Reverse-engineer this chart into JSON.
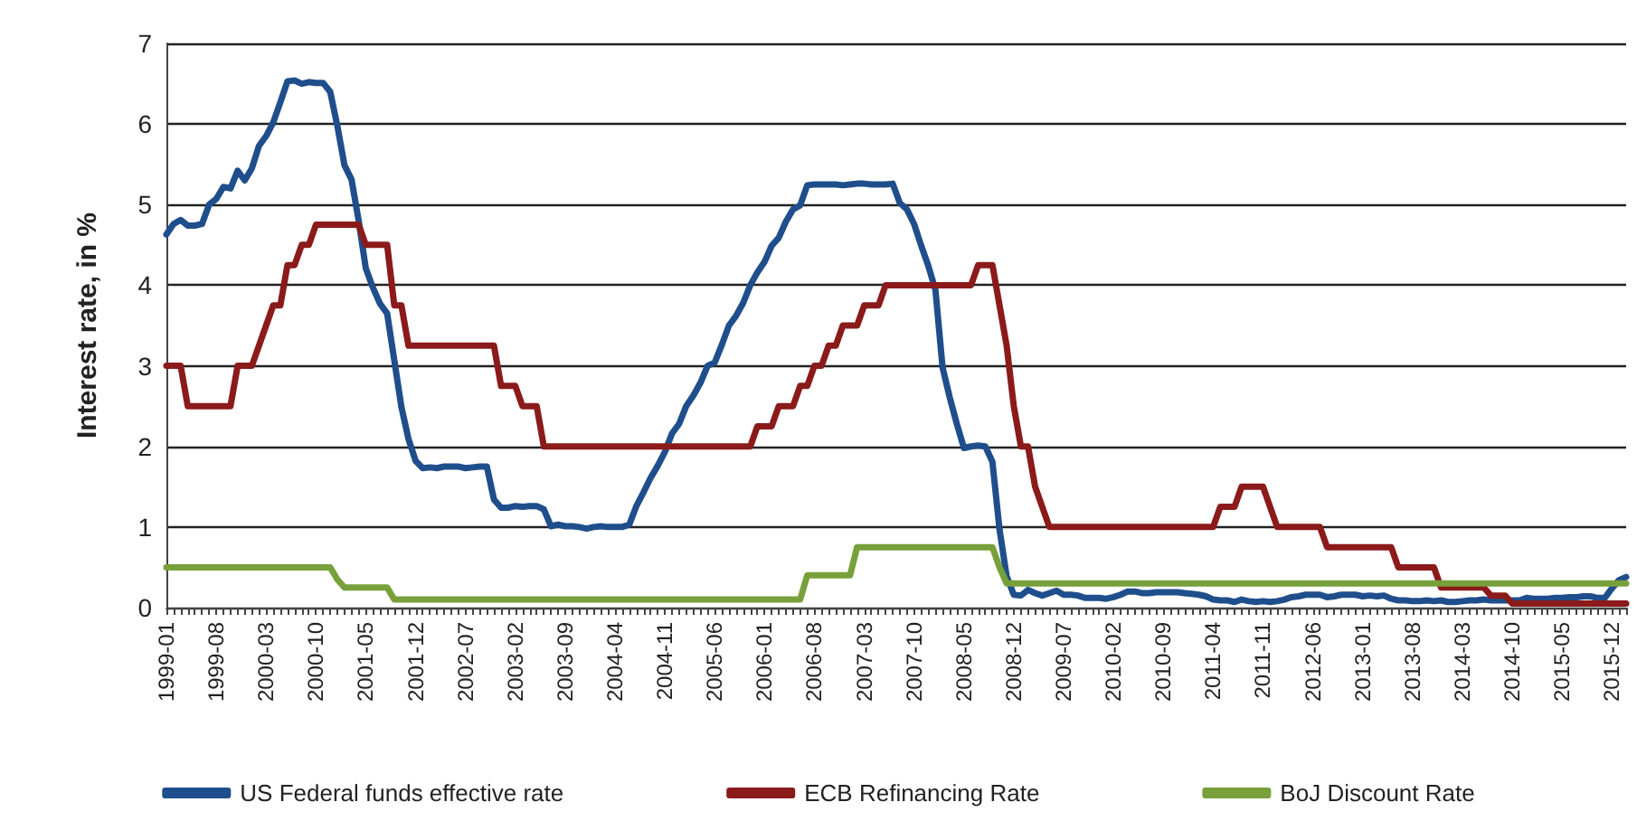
{
  "chart_data": {
    "type": "line",
    "ylabel": "Interest rate, in %",
    "ylim": [
      0,
      7
    ],
    "yticks": [
      0,
      1,
      2,
      3,
      4,
      5,
      6,
      7
    ],
    "grid": "y",
    "legend": "bottom",
    "marker": "none",
    "line_style": "solid",
    "categories": [
      "1999-01",
      null,
      null,
      null,
      null,
      null,
      null,
      "1999-08",
      null,
      null,
      null,
      null,
      null,
      null,
      "2000-03",
      null,
      null,
      null,
      null,
      null,
      null,
      "2000-10",
      null,
      null,
      null,
      null,
      null,
      null,
      "2001-05",
      null,
      null,
      null,
      null,
      null,
      null,
      "2001-12",
      null,
      null,
      null,
      null,
      null,
      null,
      "2002-07",
      null,
      null,
      null,
      null,
      null,
      null,
      "2003-02",
      null,
      null,
      null,
      null,
      null,
      null,
      "2003-09",
      null,
      null,
      null,
      null,
      null,
      null,
      "2004-04",
      null,
      null,
      null,
      null,
      null,
      null,
      "2004-11",
      null,
      null,
      null,
      null,
      null,
      null,
      "2005-06",
      null,
      null,
      null,
      null,
      null,
      null,
      "2006-01",
      null,
      null,
      null,
      null,
      null,
      null,
      "2006-08",
      null,
      null,
      null,
      null,
      null,
      null,
      "2007-03",
      null,
      null,
      null,
      null,
      null,
      null,
      "2007-10",
      null,
      null,
      null,
      null,
      null,
      null,
      "2008-05",
      null,
      null,
      null,
      null,
      null,
      null,
      "2008-12",
      null,
      null,
      null,
      null,
      null,
      null,
      "2009-07",
      null,
      null,
      null,
      null,
      null,
      null,
      "2010-02",
      null,
      null,
      null,
      null,
      null,
      null,
      "2010-09",
      null,
      null,
      null,
      null,
      null,
      null,
      "2011-04",
      null,
      null,
      null,
      null,
      null,
      null,
      "2011-11",
      null,
      null,
      null,
      null,
      null,
      null,
      "2012-06",
      null,
      null,
      null,
      null,
      null,
      null,
      "2013-01",
      null,
      null,
      null,
      null,
      null,
      null,
      "2013-08",
      null,
      null,
      null,
      null,
      null,
      null,
      "2014-03",
      null,
      null,
      null,
      null,
      null,
      null,
      "2014-10",
      null,
      null,
      null,
      null,
      null,
      null,
      "2015-05",
      null,
      null,
      null,
      null,
      null,
      null,
      "2015-12",
      null,
      null
    ],
    "series": [
      {
        "name": "US Federal funds effective rate",
        "color": "#1f4e8c",
        "values": [
          4.63,
          4.76,
          4.81,
          4.74,
          4.74,
          4.76,
          5.0,
          5.07,
          5.22,
          5.2,
          5.42,
          5.3,
          5.45,
          5.73,
          5.85,
          6.02,
          6.27,
          6.53,
          6.54,
          6.5,
          6.52,
          6.51,
          6.51,
          6.4,
          5.98,
          5.49,
          5.31,
          4.8,
          4.21,
          3.97,
          3.77,
          3.65,
          3.07,
          2.49,
          2.09,
          1.82,
          1.73,
          1.74,
          1.73,
          1.75,
          1.75,
          1.75,
          1.73,
          1.74,
          1.75,
          1.75,
          1.34,
          1.24,
          1.24,
          1.26,
          1.25,
          1.26,
          1.26,
          1.22,
          1.01,
          1.03,
          1.01,
          1.01,
          1.0,
          0.98,
          1.0,
          1.01,
          1.0,
          1.0,
          1.0,
          1.03,
          1.26,
          1.43,
          1.61,
          1.76,
          1.93,
          2.16,
          2.28,
          2.5,
          2.63,
          2.79,
          3.0,
          3.04,
          3.26,
          3.5,
          3.62,
          3.78,
          4.0,
          4.16,
          4.29,
          4.49,
          4.59,
          4.79,
          4.94,
          4.99,
          5.24,
          5.25,
          5.25,
          5.25,
          5.25,
          5.24,
          5.25,
          5.26,
          5.26,
          5.25,
          5.25,
          5.25,
          5.26,
          5.02,
          4.94,
          4.76,
          4.49,
          4.24,
          3.94,
          2.98,
          2.61,
          2.28,
          1.98,
          2.0,
          2.01,
          2.0,
          1.81,
          0.97,
          0.39,
          0.16,
          0.15,
          0.22,
          0.18,
          0.15,
          0.18,
          0.21,
          0.16,
          0.16,
          0.15,
          0.12,
          0.12,
          0.12,
          0.11,
          0.13,
          0.16,
          0.2,
          0.2,
          0.18,
          0.18,
          0.19,
          0.19,
          0.19,
          0.19,
          0.18,
          0.17,
          0.16,
          0.14,
          0.1,
          0.09,
          0.09,
          0.07,
          0.1,
          0.08,
          0.07,
          0.08,
          0.07,
          0.08,
          0.1,
          0.13,
          0.14,
          0.16,
          0.16,
          0.16,
          0.13,
          0.14,
          0.16,
          0.16,
          0.16,
          0.14,
          0.15,
          0.14,
          0.15,
          0.11,
          0.09,
          0.09,
          0.08,
          0.08,
          0.09,
          0.08,
          0.09,
          0.07,
          0.07,
          0.08,
          0.09,
          0.09,
          0.1,
          0.09,
          0.09,
          0.09,
          0.09,
          0.09,
          0.12,
          0.11,
          0.11,
          0.11,
          0.12,
          0.12,
          0.13,
          0.13,
          0.14,
          0.14,
          0.12,
          0.12,
          0.24,
          0.34,
          0.38
        ]
      },
      {
        "name": "ECB Refinancing Rate",
        "color": "#8b1a1a",
        "values": [
          3,
          3,
          3,
          2.5,
          2.5,
          2.5,
          2.5,
          2.5,
          2.5,
          2.5,
          3,
          3,
          3,
          3.25,
          3.5,
          3.75,
          3.75,
          4.25,
          4.25,
          4.5,
          4.5,
          4.75,
          4.75,
          4.75,
          4.75,
          4.75,
          4.75,
          4.75,
          4.5,
          4.5,
          4.5,
          4.5,
          3.75,
          3.75,
          3.25,
          3.25,
          3.25,
          3.25,
          3.25,
          3.25,
          3.25,
          3.25,
          3.25,
          3.25,
          3.25,
          3.25,
          3.25,
          2.75,
          2.75,
          2.75,
          2.5,
          2.5,
          2.5,
          2,
          2,
          2,
          2,
          2,
          2,
          2,
          2,
          2,
          2,
          2,
          2,
          2,
          2,
          2,
          2,
          2,
          2,
          2,
          2,
          2,
          2,
          2,
          2,
          2,
          2,
          2,
          2,
          2,
          2,
          2.25,
          2.25,
          2.25,
          2.5,
          2.5,
          2.5,
          2.75,
          2.75,
          3,
          3,
          3.25,
          3.25,
          3.5,
          3.5,
          3.5,
          3.75,
          3.75,
          3.75,
          4,
          4,
          4,
          4,
          4,
          4,
          4,
          4,
          4,
          4,
          4,
          4,
          4,
          4.25,
          4.25,
          4.25,
          3.75,
          3.25,
          2.5,
          2,
          2,
          1.5,
          1.25,
          1,
          1,
          1,
          1,
          1,
          1,
          1,
          1,
          1,
          1,
          1,
          1,
          1,
          1,
          1,
          1,
          1,
          1,
          1,
          1,
          1,
          1,
          1,
          1,
          1.25,
          1.25,
          1.25,
          1.5,
          1.5,
          1.5,
          1.5,
          1.25,
          1,
          1,
          1,
          1,
          1,
          1,
          1,
          0.75,
          0.75,
          0.75,
          0.75,
          0.75,
          0.75,
          0.75,
          0.75,
          0.75,
          0.75,
          0.5,
          0.5,
          0.5,
          0.5,
          0.5,
          0.5,
          0.25,
          0.25,
          0.25,
          0.25,
          0.25,
          0.25,
          0.25,
          0.15,
          0.15,
          0.15,
          0.05,
          0.05,
          0.05,
          0.05,
          0.05,
          0.05,
          0.05,
          0.05,
          0.05,
          0.05,
          0.05,
          0.05,
          0.05,
          0.05,
          0.05,
          0.05,
          0.05
        ]
      },
      {
        "name": "BoJ Discount Rate",
        "color": "#77a03a",
        "values": [
          0.5,
          0.5,
          0.5,
          0.5,
          0.5,
          0.5,
          0.5,
          0.5,
          0.5,
          0.5,
          0.5,
          0.5,
          0.5,
          0.5,
          0.5,
          0.5,
          0.5,
          0.5,
          0.5,
          0.5,
          0.5,
          0.5,
          0.5,
          0.5,
          0.35,
          0.25,
          0.25,
          0.25,
          0.25,
          0.25,
          0.25,
          0.25,
          0.1,
          0.1,
          0.1,
          0.1,
          0.1,
          0.1,
          0.1,
          0.1,
          0.1,
          0.1,
          0.1,
          0.1,
          0.1,
          0.1,
          0.1,
          0.1,
          0.1,
          0.1,
          0.1,
          0.1,
          0.1,
          0.1,
          0.1,
          0.1,
          0.1,
          0.1,
          0.1,
          0.1,
          0.1,
          0.1,
          0.1,
          0.1,
          0.1,
          0.1,
          0.1,
          0.1,
          0.1,
          0.1,
          0.1,
          0.1,
          0.1,
          0.1,
          0.1,
          0.1,
          0.1,
          0.1,
          0.1,
          0.1,
          0.1,
          0.1,
          0.1,
          0.1,
          0.1,
          0.1,
          0.1,
          0.1,
          0.1,
          0.1,
          0.4,
          0.4,
          0.4,
          0.4,
          0.4,
          0.4,
          0.4,
          0.75,
          0.75,
          0.75,
          0.75,
          0.75,
          0.75,
          0.75,
          0.75,
          0.75,
          0.75,
          0.75,
          0.75,
          0.75,
          0.75,
          0.75,
          0.75,
          0.75,
          0.75,
          0.75,
          0.75,
          0.5,
          0.3,
          0.3,
          0.3,
          0.3,
          0.3,
          0.3,
          0.3,
          0.3,
          0.3,
          0.3,
          0.3,
          0.3,
          0.3,
          0.3,
          0.3,
          0.3,
          0.3,
          0.3,
          0.3,
          0.3,
          0.3,
          0.3,
          0.3,
          0.3,
          0.3,
          0.3,
          0.3,
          0.3,
          0.3,
          0.3,
          0.3,
          0.3,
          0.3,
          0.3,
          0.3,
          0.3,
          0.3,
          0.3,
          0.3,
          0.3,
          0.3,
          0.3,
          0.3,
          0.3,
          0.3,
          0.3,
          0.3,
          0.3,
          0.3,
          0.3,
          0.3,
          0.3,
          0.3,
          0.3,
          0.3,
          0.3,
          0.3,
          0.3,
          0.3,
          0.3,
          0.3,
          0.3,
          0.3,
          0.3,
          0.3,
          0.3,
          0.3,
          0.3,
          0.3,
          0.3,
          0.3,
          0.3,
          0.3,
          0.3,
          0.3,
          0.3,
          0.3,
          0.3,
          0.3,
          0.3,
          0.3,
          0.3,
          0.3,
          0.3,
          0.3,
          0.3,
          0.3,
          0.3
        ]
      }
    ]
  }
}
